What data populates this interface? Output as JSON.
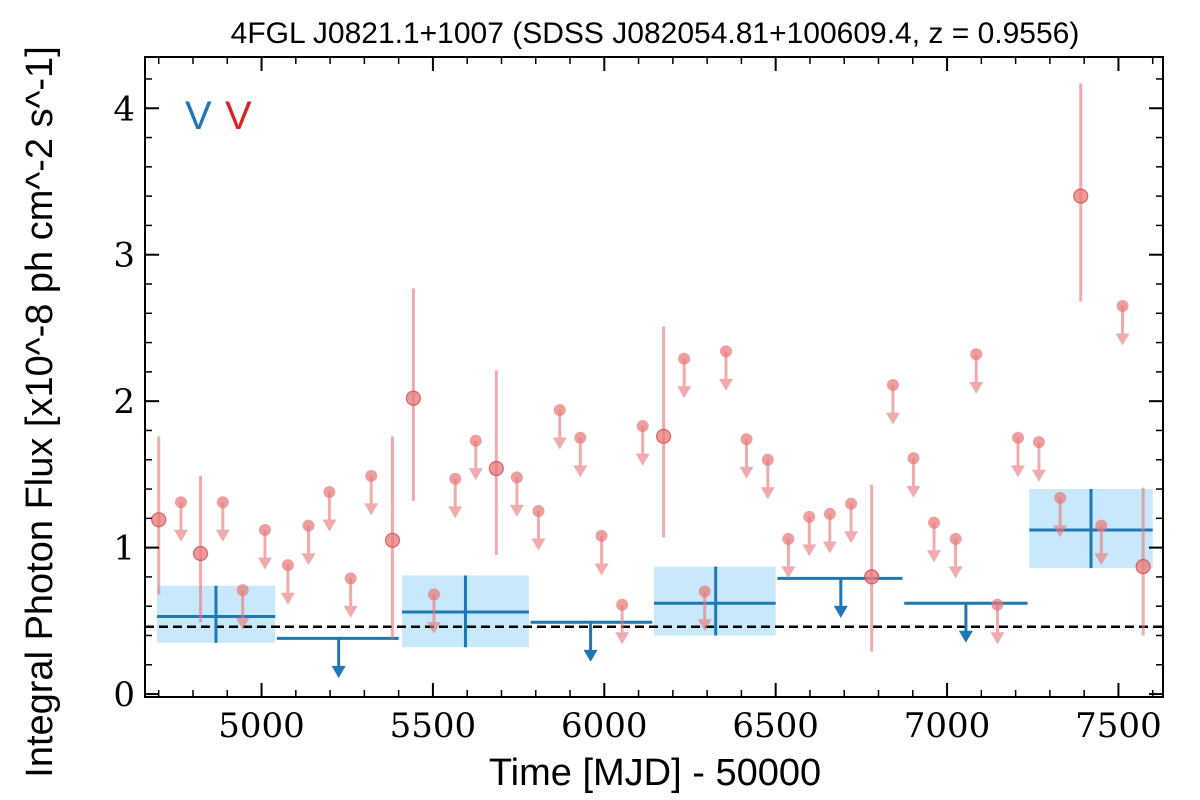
{
  "chart_data": {
    "type": "scatter",
    "title": "4FGL J0821.1+1007 (SDSS J082054.81+100609.4, z = 0.9556)",
    "xlabel": "Time [MJD] - 50000",
    "ylabel": "Integral Photon Flux [x10^-8 ph cm^-2 s^-1]",
    "xlim": [
      4660,
      7630
    ],
    "ylim": [
      -0.02,
      4.35
    ],
    "x_ticks": [
      5000,
      5500,
      6000,
      6500,
      7000,
      7500
    ],
    "y_ticks": [
      0,
      1,
      2,
      3,
      4
    ],
    "x_tick_labels": [
      "5000",
      "5500",
      "6000",
      "6500",
      "7000",
      "7500"
    ],
    "y_tick_labels": [
      "0",
      "1",
      "2",
      "3",
      "4"
    ],
    "reference_line": 0.46,
    "legend": {
      "placement": "top-left",
      "entries": [
        {
          "label": "V",
          "color": "#1f77b4"
        },
        {
          "label": "V",
          "color": "#d62728"
        }
      ]
    },
    "series": [
      {
        "name": "V",
        "color": "#1f77b4",
        "band_color": "#c8e9fb",
        "bins": [
          {
            "x_start": 4695,
            "x_end": 5040,
            "x": 4867,
            "y": 0.53,
            "y_low": 0.35,
            "y_high": 0.74,
            "upper_limit": false
          },
          {
            "x_start": 5045,
            "x_end": 5400,
            "x": 5225,
            "y": 0.38,
            "upper_limit": true
          },
          {
            "x_start": 5410,
            "x_end": 5780,
            "x": 5595,
            "y": 0.56,
            "y_low": 0.32,
            "y_high": 0.81,
            "upper_limit": false
          },
          {
            "x_start": 5785,
            "x_end": 6140,
            "x": 5960,
            "y": 0.49,
            "upper_limit": true
          },
          {
            "x_start": 6145,
            "x_end": 6500,
            "x": 6325,
            "y": 0.62,
            "y_low": 0.4,
            "y_high": 0.87,
            "upper_limit": false
          },
          {
            "x_start": 6505,
            "x_end": 6870,
            "x": 6690,
            "y": 0.79,
            "upper_limit": true
          },
          {
            "x_start": 6875,
            "x_end": 7235,
            "x": 7055,
            "y": 0.62,
            "upper_limit": true
          },
          {
            "x_start": 7240,
            "x_end": 7600,
            "x": 7420,
            "y": 1.12,
            "y_low": 0.86,
            "y_high": 1.4,
            "upper_limit": false
          }
        ]
      },
      {
        "name": "V",
        "color": "#e8787a",
        "points": [
          {
            "x": 4700,
            "y": 1.19,
            "y_low": 0.68,
            "y_high": 1.76,
            "upper_limit": false
          },
          {
            "x": 4765,
            "y": 1.31,
            "upper_limit": true
          },
          {
            "x": 4822,
            "y": 0.96,
            "y_low": 0.49,
            "y_high": 1.49,
            "upper_limit": false
          },
          {
            "x": 4887,
            "y": 1.31,
            "upper_limit": true
          },
          {
            "x": 4945,
            "y": 0.71,
            "upper_limit": true
          },
          {
            "x": 5010,
            "y": 1.12,
            "upper_limit": true
          },
          {
            "x": 5077,
            "y": 0.88,
            "upper_limit": true
          },
          {
            "x": 5137,
            "y": 1.15,
            "upper_limit": true
          },
          {
            "x": 5198,
            "y": 1.38,
            "upper_limit": true
          },
          {
            "x": 5260,
            "y": 0.79,
            "upper_limit": true
          },
          {
            "x": 5320,
            "y": 1.49,
            "upper_limit": true
          },
          {
            "x": 5382,
            "y": 1.05,
            "y_low": 0.38,
            "y_high": 1.76,
            "upper_limit": false
          },
          {
            "x": 5443,
            "y": 2.02,
            "y_low": 1.32,
            "y_high": 2.77,
            "upper_limit": false
          },
          {
            "x": 5503,
            "y": 0.68,
            "upper_limit": true
          },
          {
            "x": 5565,
            "y": 1.47,
            "upper_limit": true
          },
          {
            "x": 5625,
            "y": 1.73,
            "upper_limit": true
          },
          {
            "x": 5685,
            "y": 1.54,
            "y_low": 0.95,
            "y_high": 2.21,
            "upper_limit": false
          },
          {
            "x": 5745,
            "y": 1.48,
            "upper_limit": true
          },
          {
            "x": 5808,
            "y": 1.25,
            "upper_limit": true
          },
          {
            "x": 5870,
            "y": 1.94,
            "upper_limit": true
          },
          {
            "x": 5930,
            "y": 1.75,
            "upper_limit": true
          },
          {
            "x": 5992,
            "y": 1.08,
            "upper_limit": true
          },
          {
            "x": 6052,
            "y": 0.61,
            "upper_limit": true
          },
          {
            "x": 6112,
            "y": 1.83,
            "upper_limit": true
          },
          {
            "x": 6173,
            "y": 1.76,
            "y_low": 1.07,
            "y_high": 2.51,
            "upper_limit": false
          },
          {
            "x": 6233,
            "y": 2.29,
            "upper_limit": true
          },
          {
            "x": 6293,
            "y": 0.7,
            "upper_limit": true
          },
          {
            "x": 6355,
            "y": 2.34,
            "upper_limit": true
          },
          {
            "x": 6415,
            "y": 1.74,
            "upper_limit": true
          },
          {
            "x": 6477,
            "y": 1.6,
            "upper_limit": true
          },
          {
            "x": 6537,
            "y": 1.06,
            "upper_limit": true
          },
          {
            "x": 6598,
            "y": 1.21,
            "upper_limit": true
          },
          {
            "x": 6658,
            "y": 1.23,
            "upper_limit": true
          },
          {
            "x": 6720,
            "y": 1.3,
            "upper_limit": true
          },
          {
            "x": 6780,
            "y": 0.8,
            "y_low": 0.29,
            "y_high": 1.43,
            "upper_limit": false
          },
          {
            "x": 6842,
            "y": 2.11,
            "upper_limit": true
          },
          {
            "x": 6902,
            "y": 1.61,
            "upper_limit": true
          },
          {
            "x": 6962,
            "y": 1.17,
            "upper_limit": true
          },
          {
            "x": 7025,
            "y": 1.06,
            "upper_limit": true
          },
          {
            "x": 7085,
            "y": 2.32,
            "upper_limit": true
          },
          {
            "x": 7147,
            "y": 0.61,
            "upper_limit": true
          },
          {
            "x": 7207,
            "y": 1.75,
            "upper_limit": true
          },
          {
            "x": 7268,
            "y": 1.72,
            "upper_limit": true
          },
          {
            "x": 7330,
            "y": 1.34,
            "upper_limit": true
          },
          {
            "x": 7390,
            "y": 3.4,
            "y_low": 2.68,
            "y_high": 4.17,
            "upper_limit": false
          },
          {
            "x": 7450,
            "y": 1.15,
            "upper_limit": true
          },
          {
            "x": 7512,
            "y": 2.65,
            "upper_limit": true
          },
          {
            "x": 7572,
            "y": 0.87,
            "y_low": 0.4,
            "y_high": 1.41,
            "upper_limit": false
          }
        ]
      }
    ]
  }
}
